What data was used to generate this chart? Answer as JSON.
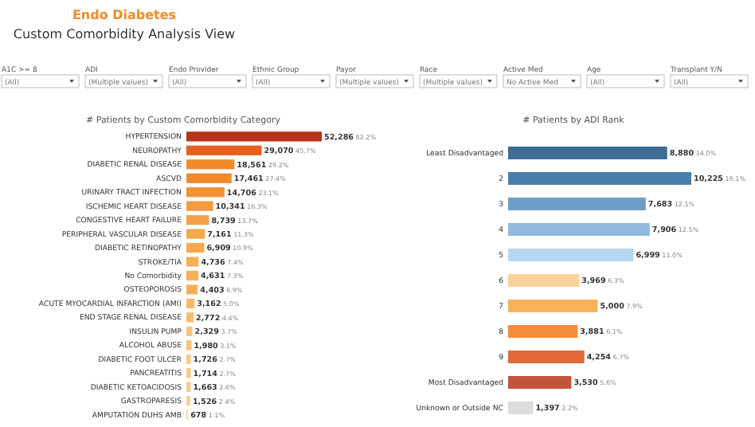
{
  "chart_data": [
    {
      "type": "other",
      "title": "Endo Diabetes",
      "subtitle": "Custom Comorbidity Analysis View",
      "annotations": [
        "A1C >= 8",
        "(All)",
        "ADI",
        "(Multiple values)",
        "Endo Provider",
        "(All)",
        "Ethnic Group",
        "(All)",
        "Payor",
        "(Multiple values)",
        "Race",
        "(Multiple values)",
        "Active Med",
        "No Active Med",
        "Age",
        "(All)",
        "Transplant Y/N",
        "(All)"
      ]
    },
    {
      "type": "bar",
      "orientation": "horizontal",
      "title": "# Patients by Custom Comorbidity Category",
      "categories": [
        "HYPERTENSION",
        "NEUROPATHY",
        "DIABETIC RENAL DISEASE",
        "ASCVD",
        "URINARY TRACT INFECTION",
        "ISCHEMIC HEART DISEASE",
        "CONGESTIVE HEART FAILURE",
        "PERIPHERAL VASCULAR DISEASE",
        "DIABETIC RETINOPATHY",
        "STROKE/TIA",
        "No Comorbidity",
        "OSTEOPOROSIS",
        "ACUTE MYOCARDIAL INFARCTION (AMI)",
        "END STAGE RENAL DISEASE",
        "INSULIN PUMP",
        "ALCOHOL ABUSE",
        "DIABETIC FOOT ULCER",
        "PANCREATITIS",
        "DIABETIC KETOACIDOSIS",
        "GASTROPARESIS",
        "AMPUTATION DUHS AMB"
      ],
      "values": [
        52286,
        29070,
        18561,
        17461,
        14706,
        10341,
        8739,
        7161,
        6909,
        4736,
        4631,
        4403,
        3162,
        2772,
        2329,
        1980,
        1726,
        1714,
        1663,
        1526,
        678
      ],
      "value_labels": [
        "52,286 82.2%",
        "29,070 45.7%",
        "18,561 29.2%",
        "17,461 27.4%",
        "14,706 23.1%",
        "10,341 16.3%",
        "8,739 13.7%",
        "7,161 11.3%",
        "6,909 10.9%",
        "4,736 7.4%",
        "4,631 7.3%",
        "4,403 6.9%",
        "3,162 5.0%",
        "2,772 4.4%",
        "2,329 3.7%",
        "1,980 3.1%",
        "1,726 2.7%",
        "1,714 2.7%",
        "1,663 2.6%",
        "1,526 2.4%",
        "678 1.1%"
      ],
      "colors": [
        "#b8321a",
        "#e8601c",
        "#f28a2a",
        "#f28a2a",
        "#f39234",
        "#f49c3e",
        "#f5a246",
        "#f6a84c",
        "#f6a84c",
        "#f7b05a",
        "#f7b05a",
        "#f7b05a",
        "#f8ba68",
        "#f8ba68",
        "#f9c478",
        "#f9c478",
        "#facb84",
        "#facb84",
        "#facb84",
        "#fbd08c",
        "#fcd89c"
      ]
    },
    {
      "type": "bar",
      "orientation": "horizontal",
      "title": "# Patients by ADI Rank",
      "categories": [
        "Least Disadvantaged",
        "2",
        "3",
        "4",
        "5",
        "6",
        "7",
        "8",
        "9",
        "Most Disadvantaged",
        "Unknown or Outside NC"
      ],
      "values": [
        8880,
        10225,
        7683,
        7906,
        6999,
        3969,
        5000,
        3881,
        4254,
        3530,
        1397
      ],
      "value_labels": [
        "8,880 14.0%",
        "10,225 16.1%",
        "7,683 12.1%",
        "7,906 12.5%",
        "6,999 11.0%",
        "3,969 6.3%",
        "5,000 7.9%",
        "3,881 6.1%",
        "4,254 6.7%",
        "3,530 5.6%",
        "1,397 2.2%"
      ],
      "colors": [
        "#3e6d95",
        "#4a7eaa",
        "#6d9ec6",
        "#8fbadd",
        "#b6d7ef",
        "#fcd29d",
        "#f9b25a",
        "#f68b3a",
        "#e2683a",
        "#c4553a",
        "#dcdcdc"
      ]
    }
  ]
}
